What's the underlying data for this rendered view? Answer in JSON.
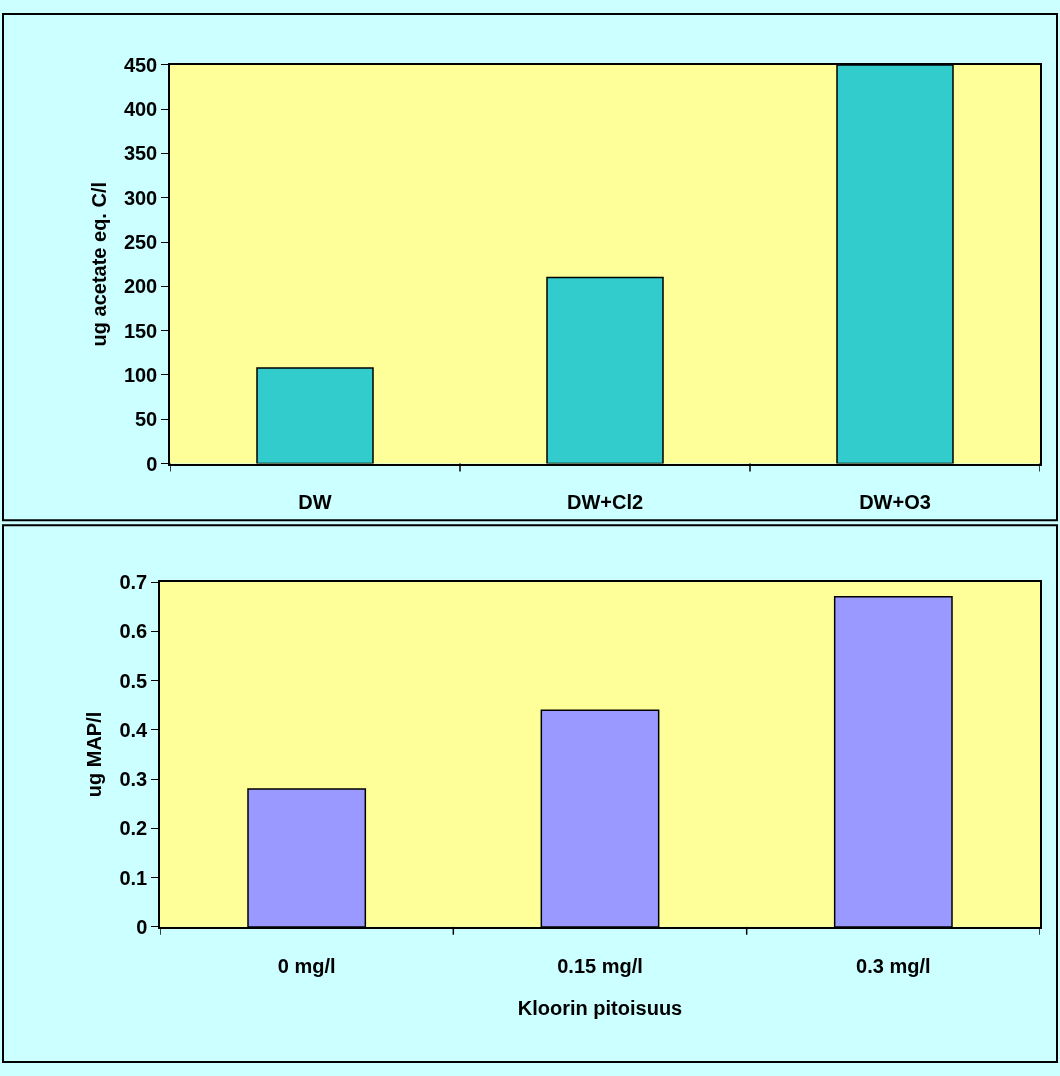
{
  "chart_data": [
    {
      "type": "bar",
      "ylabel": "ug acetate eq. C/l",
      "categories": [
        "DW",
        "DW+Cl2",
        "DW+O3"
      ],
      "series": [
        {
          "color": "#33cccc",
          "values": [
            108,
            210,
            450
          ]
        }
      ],
      "ylim": [
        0,
        450
      ],
      "yticks": [
        0,
        50,
        100,
        150,
        200,
        250,
        300,
        350,
        400,
        450
      ],
      "grid": false
    },
    {
      "type": "bar",
      "xlabel": "Kloorin pitoisuus",
      "ylabel": "ug MAP/l",
      "categories": [
        "0 mg/l",
        "0.15 mg/l",
        "0.3 mg/l"
      ],
      "series": [
        {
          "color": "#9999ff",
          "values": [
            0.28,
            0.44,
            0.67
          ]
        }
      ],
      "ylim": [
        0,
        0.7
      ],
      "yticks": [
        0,
        0.1,
        0.2,
        0.3,
        0.4,
        0.5,
        0.6,
        0.7
      ],
      "grid": false
    }
  ]
}
